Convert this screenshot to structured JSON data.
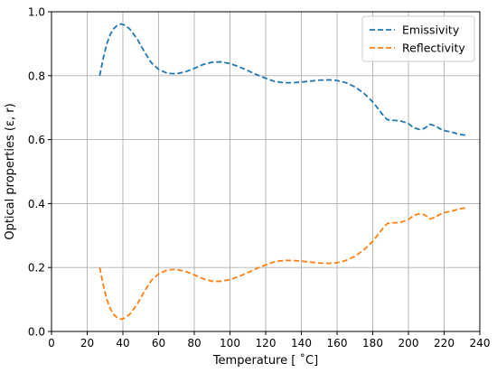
{
  "chart_data": {
    "type": "line",
    "xlabel": "Temperature [$^\\circ$C]",
    "xlabel_display": "Temperature [ ˚C]",
    "ylabel": "Optical properties (ε, r)",
    "xlim": [
      0,
      240
    ],
    "ylim": [
      0.0,
      1.0
    ],
    "xticks": [
      "0",
      "20",
      "40",
      "60",
      "80",
      "100",
      "120",
      "140",
      "160",
      "180",
      "200",
      "220",
      "240"
    ],
    "yticks": [
      "0.0",
      "0.2",
      "0.4",
      "0.6",
      "0.8",
      "1.0"
    ],
    "grid": true,
    "legend_position": "top-right",
    "series": [
      {
        "name": "Emissivity",
        "color": "#1f77b4",
        "style": "dashed",
        "x": [
          27,
          29,
          31,
          33,
          35,
          37,
          39,
          41,
          44,
          48,
          52,
          56,
          60,
          65,
          70,
          75,
          80,
          85,
          90,
          95,
          100,
          105,
          110,
          115,
          120,
          125,
          130,
          135,
          140,
          145,
          150,
          155,
          160,
          165,
          170,
          175,
          180,
          183,
          186,
          188,
          190,
          193,
          196,
          200,
          203,
          206,
          209,
          212,
          215,
          218,
          221,
          224,
          227,
          230,
          232
        ],
        "y": [
          0.8,
          0.855,
          0.9,
          0.93,
          0.948,
          0.958,
          0.962,
          0.958,
          0.945,
          0.915,
          0.875,
          0.84,
          0.82,
          0.807,
          0.806,
          0.812,
          0.823,
          0.835,
          0.842,
          0.843,
          0.838,
          0.828,
          0.816,
          0.803,
          0.792,
          0.782,
          0.778,
          0.778,
          0.78,
          0.783,
          0.786,
          0.787,
          0.785,
          0.778,
          0.765,
          0.745,
          0.718,
          0.697,
          0.675,
          0.663,
          0.66,
          0.66,
          0.658,
          0.65,
          0.637,
          0.632,
          0.635,
          0.648,
          0.643,
          0.633,
          0.627,
          0.624,
          0.619,
          0.615,
          0.614
        ]
      },
      {
        "name": "Reflectivity",
        "color": "#ff7f0e",
        "style": "dashed",
        "x": [
          27,
          29,
          31,
          33,
          35,
          37,
          39,
          41,
          44,
          48,
          52,
          56,
          60,
          65,
          70,
          75,
          80,
          85,
          90,
          95,
          100,
          105,
          110,
          115,
          120,
          125,
          130,
          135,
          140,
          145,
          150,
          155,
          160,
          165,
          170,
          175,
          180,
          183,
          186,
          188,
          190,
          193,
          196,
          200,
          203,
          206,
          209,
          212,
          215,
          218,
          221,
          224,
          227,
          230,
          232
        ],
        "y": [
          0.2,
          0.145,
          0.1,
          0.07,
          0.052,
          0.042,
          0.038,
          0.042,
          0.055,
          0.085,
          0.125,
          0.16,
          0.18,
          0.193,
          0.194,
          0.188,
          0.177,
          0.165,
          0.157,
          0.157,
          0.162,
          0.172,
          0.184,
          0.197,
          0.208,
          0.218,
          0.222,
          0.222,
          0.22,
          0.217,
          0.214,
          0.213,
          0.215,
          0.222,
          0.235,
          0.255,
          0.282,
          0.303,
          0.325,
          0.337,
          0.34,
          0.34,
          0.342,
          0.35,
          0.363,
          0.368,
          0.365,
          0.352,
          0.357,
          0.367,
          0.373,
          0.376,
          0.381,
          0.385,
          0.386
        ]
      }
    ]
  }
}
